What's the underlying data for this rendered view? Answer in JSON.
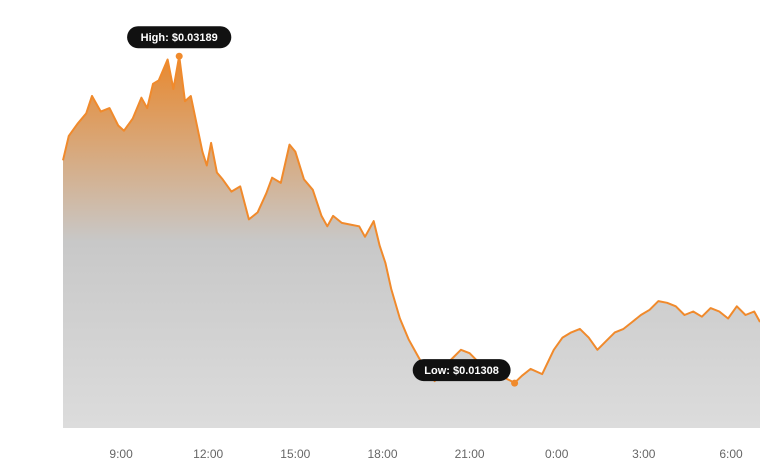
{
  "colors": {
    "line": "#f08a2c",
    "fill_top": "#e8882e",
    "fill_bottom": "#dcdcdc",
    "callout_bg": "#111111",
    "marker": "#f08a2c"
  },
  "chart_data": {
    "type": "area",
    "xlabel": "",
    "ylabel": "",
    "x_ticks": [
      "9:00",
      "12:00",
      "15:00",
      "18:00",
      "21:00",
      "0:00",
      "3:00",
      "6:00"
    ],
    "x_tick_hours": [
      9,
      12,
      15,
      18,
      21,
      24,
      27,
      30
    ],
    "xlim": [
      7.0,
      31.0
    ],
    "ylim": [
      0.0105,
      0.0342
    ],
    "grid": false,
    "legend": "none",
    "high": {
      "label": "High: $0.03189",
      "hour": 11.0,
      "value": 0.03189
    },
    "low": {
      "label": "Low: $0.01308",
      "hour": 22.55,
      "value": 0.01308
    },
    "series": [
      {
        "x": [
          7.0,
          7.2,
          7.5,
          7.8,
          8.0,
          8.3,
          8.6,
          8.9,
          9.1,
          9.4,
          9.7,
          9.9,
          10.1,
          10.3,
          10.6,
          10.8,
          11.0,
          11.2,
          11.4,
          11.6,
          11.8,
          11.95,
          12.1,
          12.3,
          12.5,
          12.8,
          13.1,
          13.4,
          13.7,
          14.0,
          14.2,
          14.5,
          14.8,
          15.0,
          15.3,
          15.6,
          15.9,
          16.1,
          16.3,
          16.6,
          16.9,
          17.2,
          17.4,
          17.7,
          17.9,
          18.1,
          18.3,
          18.6,
          18.9,
          19.2,
          19.5,
          19.8,
          20.1,
          20.4,
          20.7,
          21.0,
          21.3,
          21.6,
          21.9,
          22.2,
          22.55,
          22.8,
          23.1,
          23.5,
          23.9,
          24.2,
          24.5,
          24.8,
          25.1,
          25.4,
          25.7,
          26.0,
          26.3,
          26.6,
          26.9,
          27.2,
          27.5,
          27.8,
          28.1,
          28.4,
          28.7,
          29.0,
          29.3,
          29.6,
          29.9,
          30.2,
          30.5,
          30.8,
          31.0
        ],
        "values": [
          0.0259,
          0.0273,
          0.028,
          0.0286,
          0.0296,
          0.0287,
          0.0289,
          0.0279,
          0.0276,
          0.0283,
          0.0295,
          0.0289,
          0.0303,
          0.0305,
          0.0317,
          0.03,
          0.0319,
          0.0293,
          0.0296,
          0.028,
          0.0264,
          0.0256,
          0.0269,
          0.0252,
          0.0248,
          0.0241,
          0.0244,
          0.0225,
          0.0229,
          0.024,
          0.0249,
          0.0246,
          0.0268,
          0.0264,
          0.0248,
          0.0242,
          0.0227,
          0.0221,
          0.0227,
          0.0223,
          0.0222,
          0.0221,
          0.0215,
          0.0224,
          0.021,
          0.02,
          0.0185,
          0.0168,
          0.0156,
          0.0147,
          0.0138,
          0.0132,
          0.014,
          0.0145,
          0.015,
          0.0148,
          0.0143,
          0.0138,
          0.0136,
          0.0134,
          0.0131,
          0.0135,
          0.0139,
          0.0136,
          0.015,
          0.0157,
          0.016,
          0.0162,
          0.0157,
          0.015,
          0.0155,
          0.016,
          0.0162,
          0.0166,
          0.017,
          0.0173,
          0.0178,
          0.0177,
          0.0175,
          0.017,
          0.0172,
          0.0169,
          0.0174,
          0.0172,
          0.0168,
          0.0175,
          0.017,
          0.0172,
          0.0166
        ]
      }
    ]
  }
}
